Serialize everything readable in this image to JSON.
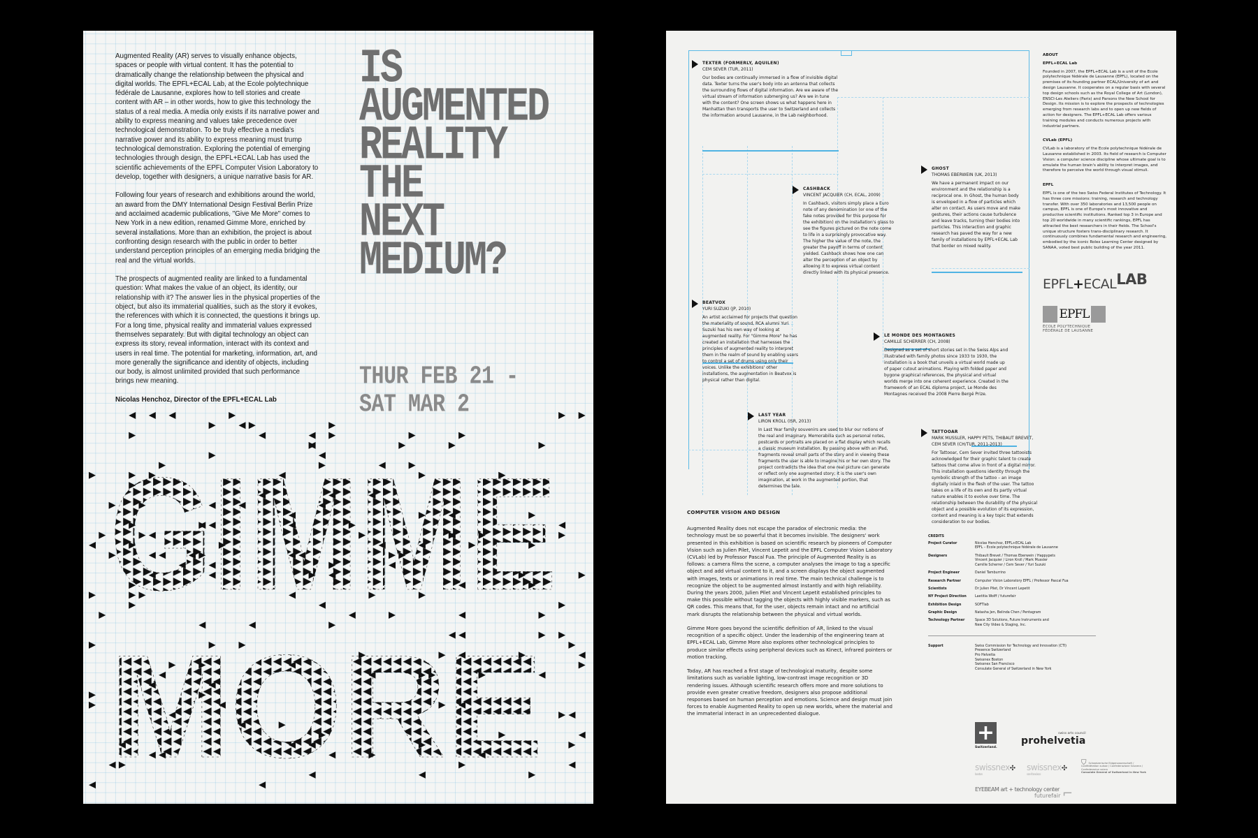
{
  "left_poster": {
    "intro_paragraphs": [
      "Augmented Reality (AR) serves to visually enhance objects, spaces or people with virtual content. It has the potential to dramatically change the relationship between the physical and digital worlds. The EPFL+ECAL Lab, at the Ecole polytechnique fédérale de Lausanne, explores how to tell stories and create content with AR – in other words, how to give this technology the status of a real media. A media only exists if its narrative power and ability to express meaning and values take precedence over technological demonstration. To be truly effective a media's narrative power and its ability to express meaning must trump technological demonstration. Exploring the potential of emerging technologies through design, the EPFL+ECAL Lab has used the scientific achievements of the EPFL Computer Vision Laboratory to develop, together with designers, a unique narrative basis for AR.",
      "Following four years of research and exhibitions around the world, an award from the DMY International Design Festival Berlin Prize and acclaimed academic publications, \"Give Me More\" comes to New York in a new edition, renamed Gimme More, enriched by several installations. More than an exhibition, the project is about confronting design research with the public in order to better understand perception principles of an emerging media bridging the real and the virtual worlds.",
      "The prospects of augmented reality are linked to a fundamental question: What makes the value of an object, its identity, our relationship with it? The answer lies in the physical properties of the object, but also its immaterial qualities, such as the story it evokes, the references with which it is connected, the questions it brings up. For a long time, physical reality and immaterial values expressed themselves separately. But with digital technology an object can express its story, reveal information, interact with its context and users in real time. The potential for marketing, information, art, and more generally the significance and identity of objects, including our body, is almost unlimited provided that such performance brings new meaning."
    ],
    "signature": "Nicolas Henchoz, Director of the EPFL+ECAL Lab",
    "headline_lines": [
      "IS",
      "AUGMENTED",
      "REALITY",
      "THE",
      "NEXT",
      "MEDIUM?"
    ],
    "date_lines": [
      "THUR FEB 21 -",
      "SAT MAR 2"
    ],
    "title_lines": [
      "GIMME",
      "MORE"
    ],
    "colors": {
      "grid": "#78bee1",
      "headline": "#6f6f6f",
      "title": "#111111"
    }
  },
  "right_poster": {
    "projects": [
      {
        "title": "TEXTER (FORMERLY, AQUILEN)",
        "by": "CEM SEVER (TUR, 2011)",
        "text": "Our bodies are continually immersed in a flow of invisible digital data. Texter turns the user's body into an antenna that collects the surrounding flows of digital information. Are we aware of the virtual stream of information submerging us? Are we in tune with the content? One screen shows us what happens here in Manhattan then transports the user to Switzerland and collects the information around Lausanne, in the Lab neighborhood."
      },
      {
        "title": "CASHBACK",
        "by": "VINCENT JACQUIER (CH, ECAL, 2009)",
        "text": "In Cashback, visitors simply place a Euro note of any denomination (or one of the fake notes provided for this purpose for the exhibition) on the installation's glass to see the figures pictured on the note come to life in a surprisingly provocative way. The higher the value of the note, the greater the payoff in terms of content yielded. Cashback shows how one can alter the perception of an object by allowing it to express virtual content directly linked with its physical presence."
      },
      {
        "title": "GHOST",
        "by": "THOMAS EBERWEIN (UK, 2013)",
        "text": "We have a permanent impact on our environment and the relationship is a reciprocal one. In Ghost, the human body is enveloped in a flow of particles which alter on contact. As users move and make gestures, their actions cause turbulence and leave tracks, turning their bodies into particles. This interaction and graphic research has paved the way for a new family of installations by EPFL+ECAL Lab that border on mixed reality."
      },
      {
        "title": "BEATVOX",
        "by": "YURI SUZUKI (JP, 2010)",
        "text": "An artist acclaimed for projects that question the materiality of sound, RCA alumni Yuri Suzuki has his own way of looking at augmented reality. For \"Gimme More\" he has created an installation that harnesses the principles of augmented reality to interpret them in the realm of sound by enabling users to control a set of drums using only their voices. Unlike the exhibitions' other installations, the augmentation in Beatvox is physical rather than digital."
      },
      {
        "title": "LE MONDE DES MONTAGNES",
        "by": "CAMILLE SCHERRER (CH, 2008)",
        "text": "Designed as a set of short stories set in the Swiss Alps and illustrated with family photos since 1933 to 1930, the installation is a book that unveils a virtual world made up of paper cutout animations. Playing with folded paper and bygone graphical references, the physical and virtual worlds merge into one coherent experience. Created in the framework of an ECAL diploma project, Le Monde des Montagnes received the 2008 Pierre Bergé Prize."
      },
      {
        "title": "LAST YEAR",
        "by": "LIRON KROLL (ISR, 2013)",
        "text": "In Last Year family souvenirs are used to blur our notions of the real and imaginary. Memorabilia such as personal notes, postcards or portraits are placed on a flat display which recalls a classic museum installation. By passing above with an iPad, fragments reveal small parts of the story and in viewing these fragments the user is able to imagine his or her own story. The project contradicts the idea that one real picture can generate or reflect only one augmented story; it is the user's own imagination, at work in the augmented portion, that determines the tale."
      },
      {
        "title": "TATTOOAR",
        "by": "MARK MUSSLER, HAPPY PETS, THIBAUT BREVET, CEM SEVER (CH/TUR, 2011-2013)",
        "text": "For Tattooar, Cem Sever invited three tattooists acknowledged for their graphic talent to create tattoos that come alive in front of a digital mirror. This installation questions identity through the symbolic strength of the tattoo – an image digitally inlaid in the flesh of the user. The tattoo takes on a life of its own and its partly virtual nature enables it to evolve over time. The relationship between the durability of the physical object and a possible evolution of its expression, content and meaning is a key topic that extends consideration to our bodies."
      }
    ],
    "about": {
      "heading": "ABOUT",
      "sections": [
        {
          "title": "EPFL+ECAL Lab",
          "text": "Founded in 2007, the EPFL+ECAL Lab is a unit of the Ecole polytechnique fédérale de Lausanne (EPFL), located on the premises of its founding partner ECAL/University of art and design Lausanne. It cooperates on a regular basis with several top design schools such as the Royal College of Art (London), ENSCI-Les Ateliers (Paris) and Parsons the New School for Design. Its mission is to explore the prospects of technologies emerging from research labs and to open up new fields of action for designers. The EPFL+ECAL Lab offers various training modules and conducts numerous projects with industrial partners."
        },
        {
          "title": "CVLab (EPFL)",
          "text": "CVLab is a laboratory of the Ecole polytechnique fédérale de Lausanne established in 2003. Its field of research is Computer Vision: a computer science discipline whose ultimate goal is to emulate the human brain's ability to interpret images, and therefore to perceive the world through visual stimuli."
        },
        {
          "title": "EPFL",
          "text": "EPFL is one of the two Swiss Federal Institutes of Technology. It has three core missions: training, research and technology transfer. With over 350 laboratories and 13,500 people on campus, EPFL is one of Europe's most innovative and productive scientific institutions. Ranked top 3 in Europe and top 20 worldwide in many scientific rankings, EPFL has attracted the best researchers in their fields. The School's unique structure fosters trans-disciplinary research. It continuously combines fundamental research and engineering, embodied by the iconic Rolex Learning Center designed by SANAA, voted best public building of the year 2011."
        }
      ]
    },
    "logos": {
      "epfl_ecal": {
        "a": "EPFL",
        "b": "ECAL",
        "c": "LAB"
      },
      "epfl": {
        "mark": "EPFL",
        "line1": "ÉCOLE POLYTECHNIQUE",
        "line2": "FÉDÉRALE DE LAUSANNE"
      },
      "switzerland": "Switzerland.",
      "prohelvetia_tag": "swiss arts council",
      "prohelvetia": "prohelvetia",
      "swissnex_boston": {
        "name": "swissnex",
        "city": "boston"
      },
      "swissnex_sf": {
        "name": "swissnex",
        "city": "san francisco"
      },
      "federal": "Schweizerische Eidgenossenschaft / Confédération suisse / Confederazione Svizzera / Confederaziun svizra",
      "consulate": "Consulate General of Switzerland in New York",
      "eyebeam": "EYEBEAM art + technology center",
      "futurefair": "futurefair"
    },
    "computer_vision": {
      "heading": "COMPUTER VISION AND DESIGN",
      "paragraphs": [
        "Augmented Reality does not escape the paradox of electronic media: the technology must be so powerful that it becomes invisible. The designers' work presented in this exhibition is based on scientific research by pioneers of Computer Vision such as Julien Pilet, Vincent Lepetit and the EPFL Computer Vision Laboratory (CVLab) led by Professor Pascal Fua. The principle of Augmented Reality is as follows: a camera films the scene, a computer analyses the image to tag a specific object and add virtual content to it, and a screen displays the object augmented with images, texts or animations in real time. The main technical challenge is to recognize the object to be augmented almost instantly and with high reliability. During the years 2000, Julien Pilet and Vincent Lepetit established principles to make this possible without tagging the objects with highly visible markers, such as QR codes. This means that, for the user, objects remain intact and no artificial mark disrupts the relationship between the physical and virtual worlds.",
        "Gimme More goes beyond the scientific definition of AR, linked to the visual recognition of a specific object. Under the leadership of the engineering team at EPFL+ECAL Lab, Gimme More also explores other technological principles to produce similar effects using peripheral devices such as Kinect, infrared pointers or motion tracking.",
        "Today, AR has reached a first stage of technological maturity, despite some limitations such as variable lighting, low-contrast image recognition or 3D rendering issues. Although scientific research offers more and more solutions to provide even greater creative freedom, designers also propose additional responses based on human perception and emotions. Science and design must join forces to enable Augmented Reality to open up new worlds, where the material and the immaterial interact in an unprecedented dialogue."
      ]
    },
    "credits": {
      "heading": "CREDITS",
      "rows": [
        {
          "label": "Project Curator",
          "value": "Nicolas Henchoz, EPFL+ECAL Lab\nEPFL – Ecole polytechnique fédérale de Lausanne"
        },
        {
          "label": "Designers",
          "value": "Thibault Brevet / Thomas Eberwein / Happypets\nVincent Jacquier / Liron Kroll / Mark Mussler\nCamille Scherrer / Cem Sever / Yuri Suzuki"
        },
        {
          "label": "Project Engineer",
          "value": "Daniel Tamburrino"
        },
        {
          "label": "Research Partner",
          "value": "Computer Vision Laboratory EPFL / Professor Pascal Fua"
        },
        {
          "label": "Scientists",
          "value": "Dr Julien Pilet, Dr Vincent Lepetit"
        },
        {
          "label": "NY Project Direction",
          "value": "Laetitia Wolff / futurefair"
        },
        {
          "label": "Exhibition Design",
          "value": "SOFTlab"
        },
        {
          "label": "Graphic Design",
          "value": "Natasha Jen, Belinda Chen / Pentagram"
        },
        {
          "label": "Technology Partner",
          "value": "Space 3D Solutions, Future Instruments and\nNew City Video & Staging, Inc."
        }
      ],
      "support": {
        "label": "Support",
        "value": "Swiss Commission for Technology and Innovation (CTI)\nPresence Switzerland\nPro Helvetia\nSwissnex Boston\nSwissnex San Francisco\nConsulate General of Switzerland in New York"
      }
    },
    "colors": {
      "guide": "#5ab9e6",
      "arrow": "#111111"
    }
  }
}
